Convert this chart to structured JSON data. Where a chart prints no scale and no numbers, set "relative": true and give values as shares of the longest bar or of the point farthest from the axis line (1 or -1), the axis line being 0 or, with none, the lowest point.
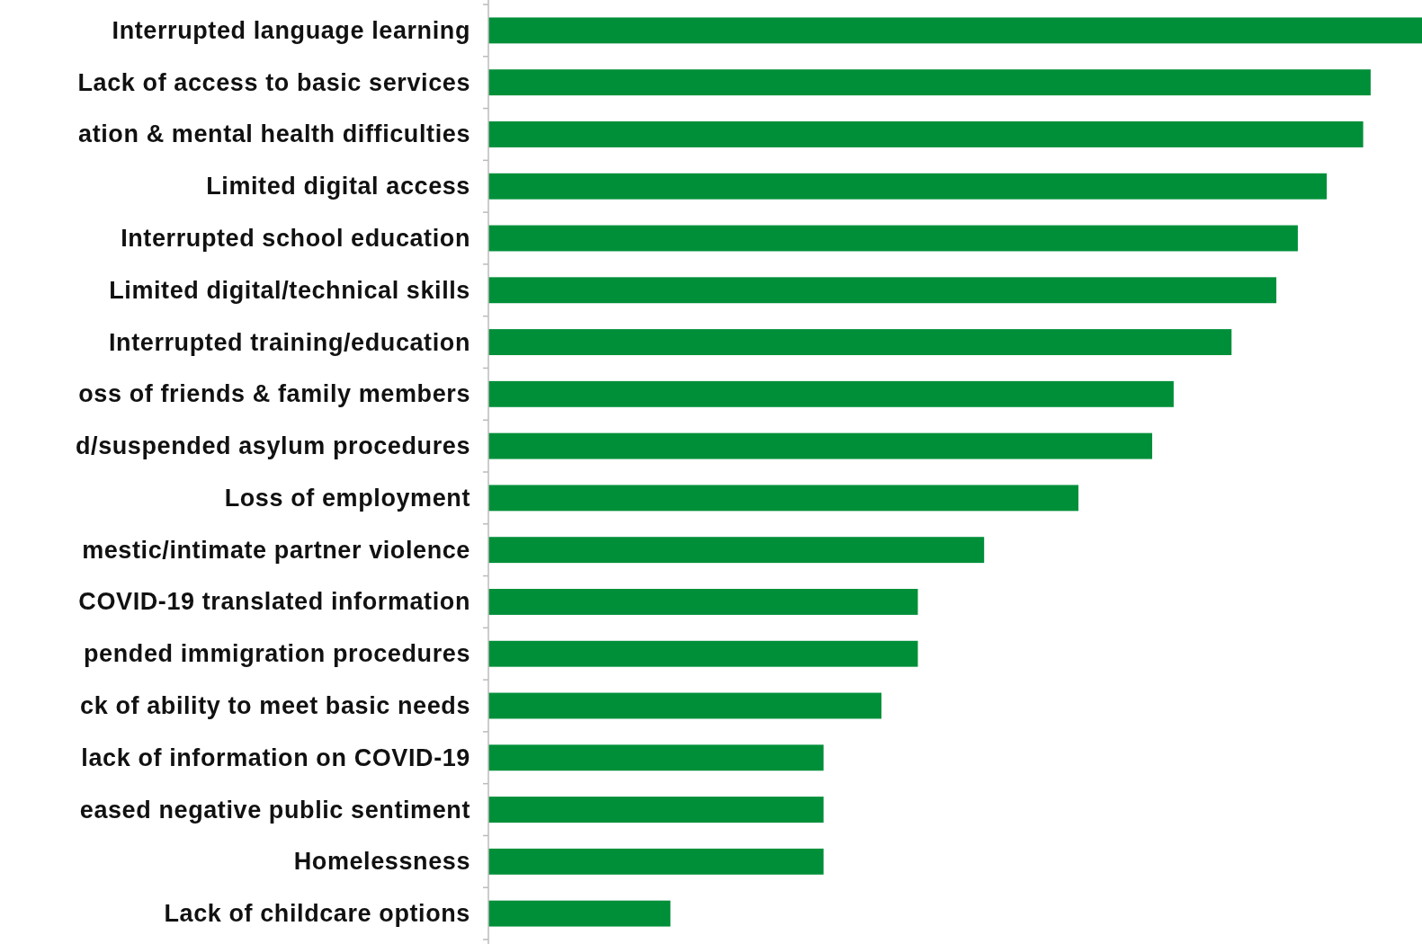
{
  "chart_data": {
    "type": "bar",
    "orientation": "horizontal",
    "relative": true,
    "color": "#008f39",
    "categories": [
      "Interrupted language learning",
      "Lack of access to basic services",
      "ation & mental health difficulties",
      "Limited digital access",
      "Interrupted school education",
      "Limited digital/technical skills",
      "Interrupted training/education",
      "oss of friends & family members",
      "d/suspended asylum procedures",
      "Loss of employment",
      "mestic/intimate partner violence",
      "COVID-19 translated information",
      "pended immigration procedures",
      "ck of ability to meet basic needs",
      "lack of information on COVID-19",
      "eased negative public sentiment",
      "Homelessness",
      "Lack of childcare options"
    ],
    "values": [
      1,
      0.945,
      0.937,
      0.898,
      0.867,
      0.844,
      0.796,
      0.734,
      0.711,
      0.632,
      0.531,
      0.46,
      0.46,
      0.421,
      0.359,
      0.359,
      0.359,
      0.195
    ]
  }
}
